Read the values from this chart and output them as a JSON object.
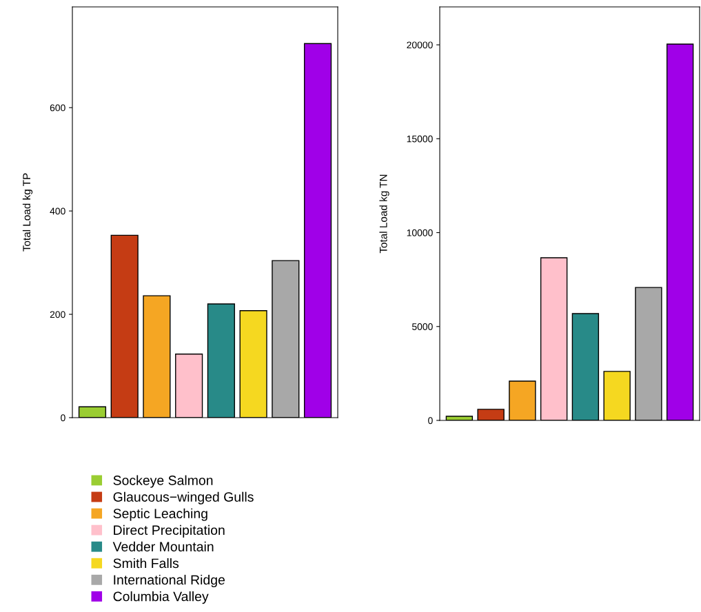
{
  "chart_data": [
    {
      "type": "bar",
      "ylabel": "Total Load kg TP",
      "categories": [
        null,
        null,
        null,
        null,
        null,
        null,
        null,
        null
      ],
      "series": [
        {
          "name": "Sockeye Salmon",
          "color": "#9acd32",
          "values": [
            21,
            null,
            null,
            null,
            null,
            null,
            null,
            null
          ]
        },
        {
          "name": "Glaucous−winged Gulls",
          "color": "#c53c14",
          "values": [
            null,
            353,
            null,
            null,
            null,
            null,
            null,
            null
          ]
        },
        {
          "name": "Septic Leaching",
          "color": "#f5a623",
          "values": [
            null,
            null,
            236,
            null,
            null,
            null,
            null,
            null
          ]
        },
        {
          "name": "Direct Precipitation",
          "color": "#ffc0cb",
          "values": [
            null,
            null,
            null,
            123,
            null,
            null,
            null,
            null
          ]
        },
        {
          "name": "Vedder Mountain",
          "color": "#288a88",
          "values": [
            null,
            null,
            null,
            null,
            220,
            null,
            null,
            null
          ]
        },
        {
          "name": "Smith Falls",
          "color": "#f5d820",
          "values": [
            null,
            null,
            null,
            null,
            null,
            207,
            null,
            null
          ]
        },
        {
          "name": "International Ridge",
          "color": "#a8a8a8",
          "values": [
            null,
            null,
            null,
            null,
            null,
            null,
            304,
            null
          ]
        },
        {
          "name": "Columbia Valley",
          "color": "#a000e8",
          "values": [
            null,
            null,
            null,
            null,
            null,
            null,
            null,
            724
          ]
        }
      ],
      "ylim": [
        0,
        795
      ],
      "yticks": [
        0,
        200,
        400,
        600
      ],
      "tick_labels": "y",
      "legend": "bottom"
    },
    {
      "type": "bar",
      "ylabel": "Total Load kg TN",
      "categories": [
        null,
        null,
        null,
        null,
        null,
        null,
        null,
        null
      ],
      "values": [
        220,
        590,
        2090,
        8660,
        5690,
        2610,
        7080,
        20040
      ],
      "colors": [
        "#9acd32",
        "#c53c14",
        "#f5a623",
        "#ffc0cb",
        "#288a88",
        "#f5d820",
        "#a8a8a8",
        "#a000e8"
      ],
      "ylim": [
        0,
        22020
      ],
      "yticks": [
        0,
        5000,
        10000,
        15000,
        20000
      ],
      "tick_labels": "y"
    }
  ]
}
